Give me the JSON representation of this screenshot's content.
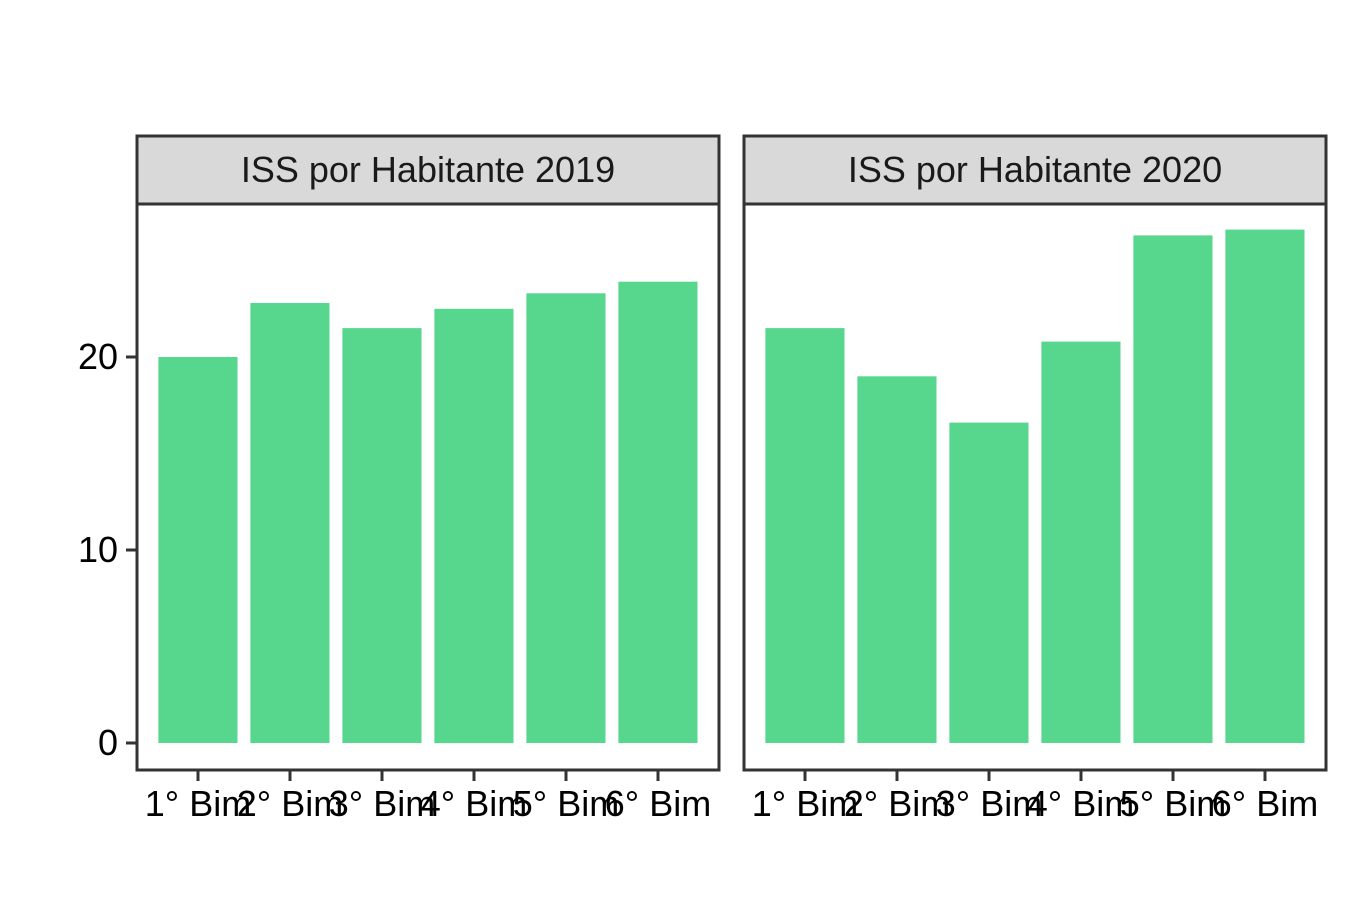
{
  "chart_data": {
    "type": "bar",
    "categories": [
      "1° Bim",
      "2° Bim",
      "3° Bim",
      "4° Bim",
      "5° Bim",
      "6° Bim"
    ],
    "ylim": [
      0,
      28.5
    ],
    "yticks": [
      0,
      10,
      20
    ],
    "xlabel": "",
    "ylabel": "",
    "grid": false,
    "bar_color": "#57D68E",
    "panels": [
      {
        "title": "ISS por Habitante 2019",
        "values": [
          20.0,
          22.8,
          21.5,
          22.5,
          23.3,
          23.9
        ]
      },
      {
        "title": "ISS por Habitante 2020",
        "values": [
          21.5,
          19.0,
          16.6,
          20.8,
          26.3,
          26.6
        ]
      }
    ]
  }
}
